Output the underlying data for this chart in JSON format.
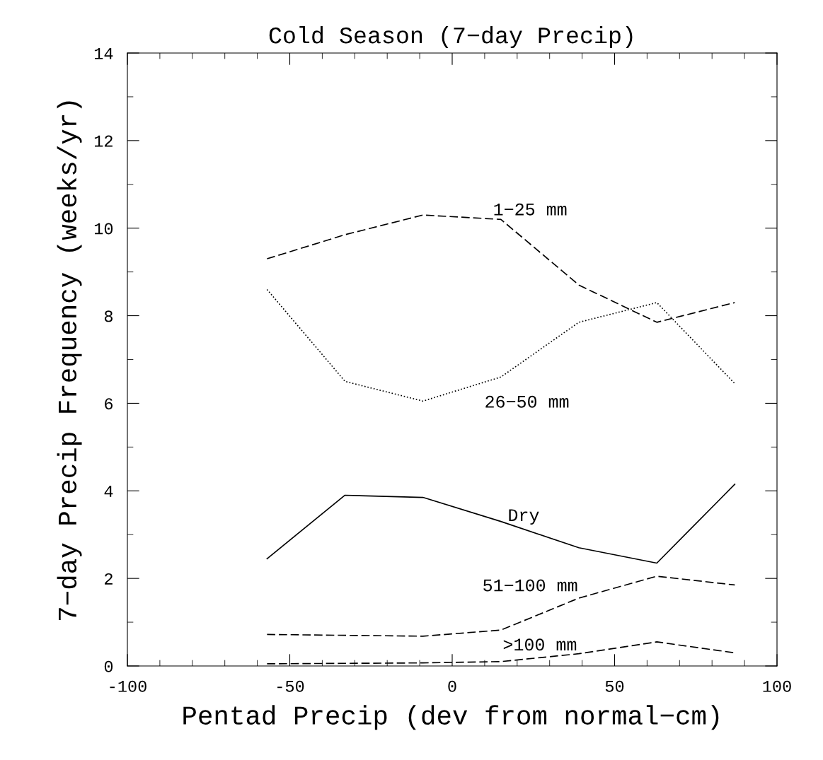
{
  "chart_data": {
    "type": "line",
    "title": "Cold Season (7−day Precip)",
    "xlabel": "Pentad Precip (dev from normal−cm)",
    "ylabel": "7−day Precip Frequency (weeks/yr)",
    "x": [
      -57,
      -33,
      -9,
      15,
      39,
      63,
      87
    ],
    "series": [
      {
        "name": "1−25 mm",
        "color": "#000000",
        "line_style": "dashed",
        "values": [
          9.3,
          9.85,
          10.3,
          10.2,
          8.7,
          7.85,
          8.3
        ]
      },
      {
        "name": "26−50 mm",
        "color": "#000000",
        "line_style": "dotted",
        "values": [
          8.6,
          6.5,
          6.05,
          6.6,
          7.85,
          8.3,
          6.45
        ]
      },
      {
        "name": "Dry",
        "color": "#000000",
        "line_style": "solid",
        "values": [
          2.45,
          3.9,
          3.85,
          3.3,
          2.7,
          2.35,
          4.15
        ]
      },
      {
        "name": "51−100 mm",
        "color": "#000000",
        "line_style": "dashed",
        "values": [
          0.72,
          0.7,
          0.68,
          0.82,
          1.55,
          2.05,
          1.85
        ]
      },
      {
        "name": ">100 mm",
        "color": "#000000",
        "line_style": "dashed",
        "values": [
          0.05,
          0.06,
          0.07,
          0.1,
          0.28,
          0.55,
          0.3
        ]
      }
    ],
    "xlim": [
      -100,
      100
    ],
    "xticks": [
      -100,
      -50,
      0,
      50,
      100
    ],
    "ylim": [
      0,
      14
    ],
    "yticks": [
      0,
      2,
      4,
      6,
      8,
      10,
      12,
      14
    ],
    "grid": false,
    "legend": false,
    "marker": "none"
  }
}
